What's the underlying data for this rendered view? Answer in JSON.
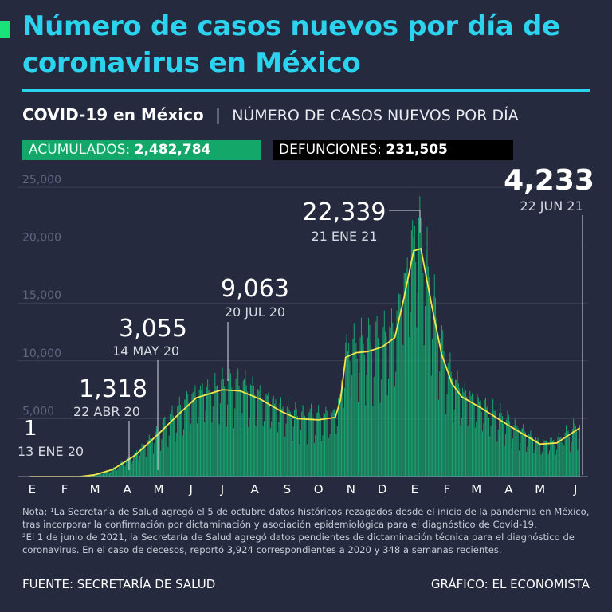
{
  "header": {
    "title": "Número de casos nuevos por día de coronavirus en México",
    "subtitle_strong": "COVID-19 en México",
    "subtitle_separator": "|",
    "subtitle_light": "NÚMERO DE CASOS NUEVOS POR DÍA"
  },
  "badges": {
    "acumulados_label": "ACUMULADOS:",
    "acumulados_value": "2,482,784",
    "defunciones_label": "DEFUNCIONES:",
    "defunciones_value": "231,505"
  },
  "colors": {
    "background": "#252a3e",
    "title": "#2bd3ee",
    "bars": "#17b574",
    "trend_line": "#f2e64a",
    "acumulados_badge": "#13a86a",
    "defunciones_badge": "#000000"
  },
  "chart_data": {
    "type": "bar",
    "ylim": [
      0,
      25000
    ],
    "yticks": [
      "25,000",
      "20,000",
      "15,000",
      "10,000",
      "5,000"
    ],
    "ytick_values": [
      25000,
      20000,
      15000,
      10000,
      5000
    ],
    "month_labels": [
      "E",
      "F",
      "M",
      "A",
      "M",
      "J",
      "J",
      "A",
      "S",
      "O",
      "N",
      "D",
      "E",
      "F",
      "M",
      "A",
      "M",
      "J"
    ],
    "x_start": "2020-01-01",
    "x_end": "2021-06-30",
    "trend_line": [
      [
        "2020-01-13",
        0
      ],
      [
        "2020-03-01",
        0
      ],
      [
        "2020-03-15",
        150
      ],
      [
        "2020-04-01",
        600
      ],
      [
        "2020-04-22",
        1800
      ],
      [
        "2020-05-14",
        3600
      ],
      [
        "2020-06-01",
        5200
      ],
      [
        "2020-06-20",
        6800
      ],
      [
        "2020-07-15",
        7500
      ],
      [
        "2020-08-01",
        7400
      ],
      [
        "2020-08-20",
        6700
      ],
      [
        "2020-09-10",
        5600
      ],
      [
        "2020-09-25",
        5000
      ],
      [
        "2020-10-15",
        4900
      ],
      [
        "2020-10-31",
        5100
      ],
      [
        "2020-11-05",
        6600
      ],
      [
        "2020-11-10",
        10300
      ],
      [
        "2020-11-20",
        10700
      ],
      [
        "2020-12-01",
        10800
      ],
      [
        "2020-12-15",
        11200
      ],
      [
        "2020-12-27",
        12000
      ],
      [
        "2021-01-05",
        15500
      ],
      [
        "2021-01-14",
        19500
      ],
      [
        "2021-01-21",
        19700
      ],
      [
        "2021-02-01",
        14500
      ],
      [
        "2021-02-10",
        10500
      ],
      [
        "2021-02-20",
        8000
      ],
      [
        "2021-03-01",
        6900
      ],
      [
        "2021-03-20",
        5900
      ],
      [
        "2021-04-10",
        4700
      ],
      [
        "2021-04-30",
        3600
      ],
      [
        "2021-05-15",
        2800
      ],
      [
        "2021-05-31",
        2900
      ],
      [
        "2021-06-22",
        4200
      ]
    ],
    "annotations": [
      {
        "date": "2020-01-13",
        "value": "1",
        "date_label": "13 ENE 20",
        "cases": 1
      },
      {
        "date": "2020-04-22",
        "value": "1,318",
        "date_label": "22 ABR 20",
        "cases": 1318
      },
      {
        "date": "2020-05-14",
        "value": "3,055",
        "date_label": "14 MAY 20",
        "cases": 3055
      },
      {
        "date": "2020-07-20",
        "value": "9,063",
        "date_label": "20 JUL 20",
        "cases": 9063
      },
      {
        "date": "2021-01-21",
        "value": "22,339",
        "date_label": "21 ENE 21",
        "cases": 22339
      },
      {
        "date": "2021-06-22",
        "value": "4,233",
        "date_label": "22 JUN 21",
        "cases": 4233
      }
    ]
  },
  "notes": {
    "line1": "Nota: ¹La Secretaría de Salud agregó el 5 de octubre datos históricos rezagados desde el inicio de la pandemia en México, tras incorporar la confirmación por dictaminación y asociación epidemiológica para el diagnóstico de Covid-19.",
    "line2": "²El 1 de junio de 2021, la Secretaría de Salud agregó datos pendientes de dictaminación técnica para el diagnóstico de coronavirus. En el caso de decesos, reportó 3,924 correspondientes a 2020 y 348 a semanas recientes."
  },
  "footer": {
    "source": "FUENTE: SECRETARÍA DE SALUD",
    "credit": "GRÁFICO: EL ECONOMISTA"
  }
}
